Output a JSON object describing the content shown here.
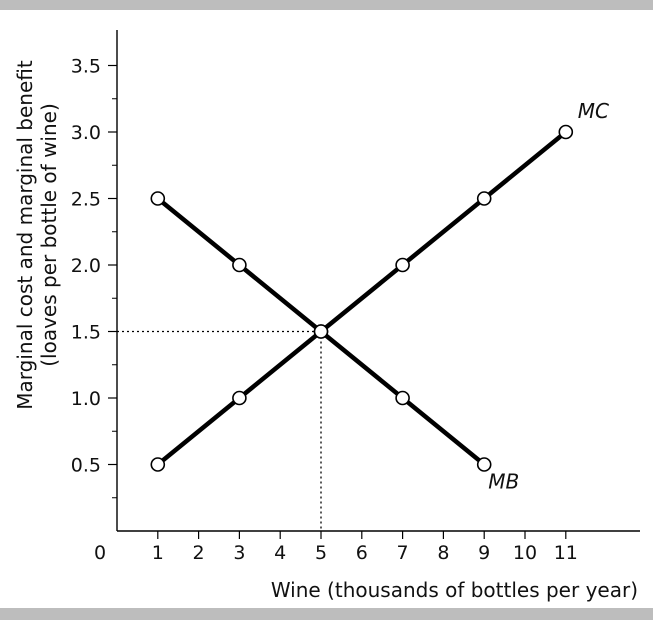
{
  "chart_data": {
    "type": "line",
    "xlabel": "Wine (thousands of bottles per year)",
    "ylabel_line1": "Marginal cost and marginal benefit",
    "ylabel_line2": "(loaves per bottle of wine)",
    "origin_label": "0",
    "xlim": [
      0,
      13
    ],
    "ylim": [
      0,
      3.75
    ],
    "x_ticks": [
      1,
      2,
      3,
      4,
      5,
      6,
      7,
      8,
      9,
      10,
      11
    ],
    "x_tick_labels": [
      "1",
      "2",
      "3",
      "4",
      "5",
      "6",
      "7",
      "8",
      "9",
      "10",
      "11"
    ],
    "y_ticks": [
      0.5,
      1.0,
      1.5,
      2.0,
      2.5,
      3.0,
      3.5
    ],
    "y_tick_labels": [
      "0.5",
      "1.0",
      "1.5",
      "2.0",
      "2.5",
      "3.0",
      "3.5"
    ],
    "y_minor_ticks": [
      0.25,
      0.75,
      1.25,
      1.75,
      2.25,
      2.75,
      3.25
    ],
    "series": [
      {
        "name": "MC",
        "x": [
          1,
          3,
          5,
          7,
          9,
          11
        ],
        "y": [
          0.5,
          1.0,
          1.5,
          2.0,
          2.5,
          3.0
        ]
      },
      {
        "name": "MB",
        "x": [
          1,
          3,
          5,
          7,
          9
        ],
        "y": [
          2.5,
          2.0,
          1.5,
          1.0,
          0.5
        ]
      }
    ],
    "equilibrium": {
      "x": 5,
      "y": 1.5
    },
    "grid": false,
    "colors": {
      "line": "#000000",
      "marker_fill": "#ffffff",
      "guide": "#000000",
      "frame_bar": "#bdbdbd"
    }
  }
}
